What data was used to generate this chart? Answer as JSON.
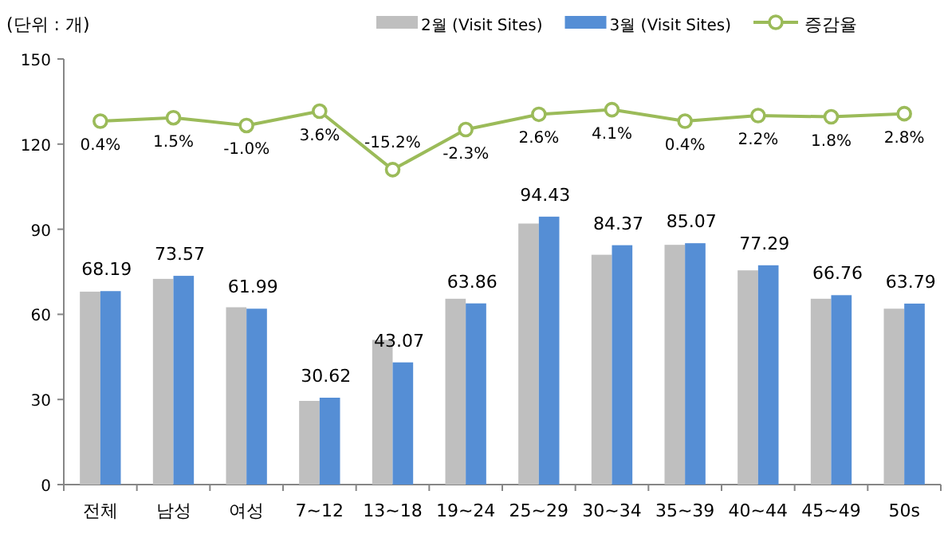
{
  "chart_data": {
    "type": "bar",
    "ylabel": "(단위 : 개)",
    "categories": [
      "전체",
      "남성",
      "여성",
      "7~12",
      "13~18",
      "19~24",
      "25~29",
      "30~34",
      "35~39",
      "40~44",
      "45~49",
      "50s"
    ],
    "series": [
      {
        "name": "2월 (Visit Sites)",
        "color": "#bfbfbf",
        "values": [
          68,
          72.5,
          62.5,
          29.5,
          51,
          65.5,
          92,
          81,
          84.5,
          75.5,
          65.5,
          62
        ]
      },
      {
        "name": "3월 (Visit Sites)",
        "color": "#558ed5",
        "values": [
          68.19,
          73.57,
          61.99,
          30.62,
          43.07,
          63.86,
          94.43,
          84.37,
          85.07,
          77.29,
          66.76,
          63.79
        ],
        "value_labels": [
          "68.19",
          "73.57",
          "61.99",
          "30.62",
          "43.07",
          "63.86",
          "94.43",
          "84.37",
          "85.07",
          "77.29",
          "66.76",
          "63.79"
        ]
      },
      {
        "name": "증감율",
        "type": "line",
        "axis": "y2",
        "color": "#9bbb59",
        "marker": "circle",
        "values": [
          0.4,
          1.5,
          -1.0,
          3.6,
          -15.2,
          -2.3,
          2.6,
          4.1,
          0.4,
          2.2,
          1.8,
          2.8
        ],
        "value_labels": [
          "0.4%",
          "1.5%",
          "-1.0%",
          "3.6%",
          "-15.2%",
          "-2.3%",
          "2.6%",
          "4.1%",
          "0.4%",
          "2.2%",
          "1.8%",
          "2.8%"
        ]
      }
    ],
    "ylim": [
      0,
      150
    ],
    "yticks": [
      0,
      30,
      60,
      90,
      120,
      150
    ],
    "y2lim": [
      -116.5,
      20.4
    ],
    "legend": "top right",
    "grid": false
  }
}
